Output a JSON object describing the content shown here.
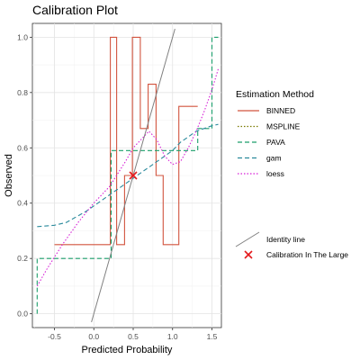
{
  "title": "Calibration Plot",
  "chart_data": {
    "type": "line",
    "title": "Calibration Plot",
    "xlabel": "Predicted Probability",
    "ylabel": "Observed",
    "xlim": [
      -0.78,
      1.62
    ],
    "ylim": [
      -0.05,
      1.05
    ],
    "x_ticks": [
      -0.5,
      0.0,
      0.5,
      1.0,
      1.5
    ],
    "x_tick_labels": [
      "-0.5",
      "0.0",
      "0.5",
      "1.0",
      "1.5"
    ],
    "y_ticks": [
      0.0,
      0.2,
      0.4,
      0.6,
      0.8,
      1.0
    ],
    "y_tick_labels": [
      "0.0",
      "0.2",
      "0.4",
      "0.6",
      "0.8",
      "1.0"
    ],
    "grid": true,
    "legend_position": "right",
    "legend_title": "Estimation Method",
    "series": [
      {
        "name": "BINNED",
        "style": "step",
        "dash": "solid",
        "color": "#d2543f",
        "x": [
          -0.5,
          0.21,
          0.21,
          0.29,
          0.29,
          0.39,
          0.39,
          0.49,
          0.49,
          0.59,
          0.59,
          0.69,
          0.69,
          0.79,
          0.79,
          0.88,
          0.88,
          1.08,
          1.08,
          1.32
        ],
        "y": [
          0.25,
          0.25,
          1.0,
          1.0,
          0.25,
          0.25,
          0.5,
          0.5,
          1.0,
          1.0,
          0.67,
          0.67,
          0.83,
          0.83,
          0.5,
          0.5,
          0.25,
          0.25,
          0.75,
          0.75
        ]
      },
      {
        "name": "MSPLINE",
        "style": "line",
        "dash": "dotted",
        "color": "#7a7a00",
        "x": [],
        "y": []
      },
      {
        "name": "PAVA",
        "style": "step",
        "dash": "dashed",
        "color": "#1a9e6a",
        "x": [
          -0.72,
          -0.72,
          0.22,
          0.22,
          1.32,
          1.32,
          1.5,
          1.5,
          1.58
        ],
        "y": [
          0.0,
          0.2,
          0.2,
          0.59,
          0.59,
          0.67,
          0.67,
          1.0,
          1.0
        ]
      },
      {
        "name": "gam",
        "style": "line",
        "dash": "dashed",
        "color": "#2a8a9c",
        "x": [
          -0.72,
          -0.5,
          -0.35,
          -0.1,
          0.0,
          0.1,
          0.2,
          0.3,
          0.4,
          0.5,
          0.6,
          0.7,
          0.8,
          0.9,
          1.0,
          1.1,
          1.2,
          1.3,
          1.4,
          1.5,
          1.58
        ],
        "y": [
          0.315,
          0.32,
          0.33,
          0.37,
          0.39,
          0.41,
          0.43,
          0.45,
          0.47,
          0.49,
          0.51,
          0.53,
          0.55,
          0.57,
          0.59,
          0.62,
          0.64,
          0.66,
          0.67,
          0.68,
          0.685
        ]
      },
      {
        "name": "loess",
        "style": "line",
        "dash": "dotted",
        "color": "#d61fd6",
        "x": [
          -0.72,
          -0.6,
          -0.4,
          -0.2,
          0.0,
          0.2,
          0.4,
          0.5,
          0.6,
          0.7,
          0.8,
          0.9,
          1.0,
          1.1,
          1.2,
          1.3,
          1.4,
          1.5,
          1.58
        ],
        "y": [
          0.1,
          0.16,
          0.25,
          0.33,
          0.4,
          0.46,
          0.55,
          0.6,
          0.63,
          0.66,
          0.63,
          0.57,
          0.54,
          0.55,
          0.6,
          0.66,
          0.73,
          0.81,
          0.885
        ]
      }
    ],
    "identity_line": {
      "label": "Identity line",
      "color": "#808080",
      "x": [
        -0.03,
        1.03
      ],
      "y": [
        -0.03,
        1.03
      ]
    },
    "calibration_in_the_large": {
      "label": "Calibration In The Large",
      "color": "#e41a1c",
      "x": 0.5,
      "y": 0.5
    }
  }
}
